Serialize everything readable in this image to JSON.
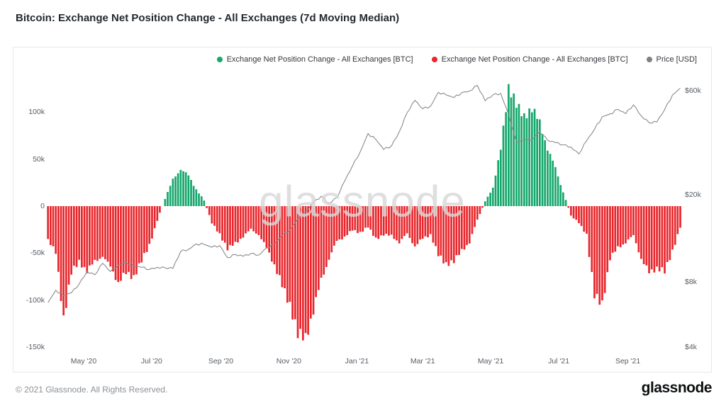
{
  "title": "Bitcoin: Exchange Net Position Change - All Exchanges (7d Moving Median)",
  "watermark": "glassnode",
  "legend": [
    {
      "label": "Exchange Net Position Change - All Exchanges [BTC]",
      "color": "#16a76c"
    },
    {
      "label": "Exchange Net Position Change - All Exchanges [BTC]",
      "color": "#e8262c"
    },
    {
      "label": "Price [USD]",
      "color": "#808080"
    }
  ],
  "footer": {
    "copyright": "© 2021 Glassnode. All Rights Reserved.",
    "logo_text": "glassnode"
  },
  "chart_data": {
    "type": "bar+line",
    "title": "Bitcoin: Exchange Net Position Change - All Exchanges (7d Moving Median)",
    "colors": {
      "positive": "#16a76c",
      "negative": "#e8262c",
      "price": "#8a8a8a"
    },
    "left_axis": {
      "ticks": [
        "100k",
        "50k",
        "0",
        "-50k",
        "-100k",
        "-150k"
      ],
      "tick_values": [
        100000,
        50000,
        0,
        -50000,
        -100000,
        -150000
      ],
      "range": [
        -160000,
        140000
      ],
      "unit": "BTC"
    },
    "right_axis": {
      "scale": "log",
      "ticks": [
        "$60k",
        "$20k",
        "$8k",
        "$4k"
      ],
      "tick_values": [
        60000,
        20000,
        8000,
        4000
      ],
      "unit": "USD"
    },
    "x_ticks": [
      {
        "date": "2020-05-01",
        "label": "May '20"
      },
      {
        "date": "2020-07-01",
        "label": "Jul '20"
      },
      {
        "date": "2020-09-01",
        "label": "Sep '20"
      },
      {
        "date": "2020-11-01",
        "label": "Nov '20"
      },
      {
        "date": "2021-01-01",
        "label": "Jan '21"
      },
      {
        "date": "2021-03-01",
        "label": "Mar '21"
      },
      {
        "date": "2021-05-01",
        "label": "May '21"
      },
      {
        "date": "2021-07-01",
        "label": "Jul '21"
      },
      {
        "date": "2021-09-01",
        "label": "Sep '21"
      }
    ],
    "x": [
      "2020-03-30",
      "2020-04-06",
      "2020-04-13",
      "2020-04-20",
      "2020-04-27",
      "2020-05-04",
      "2020-05-11",
      "2020-05-18",
      "2020-05-25",
      "2020-06-01",
      "2020-06-08",
      "2020-06-15",
      "2020-06-22",
      "2020-06-29",
      "2020-07-06",
      "2020-07-13",
      "2020-07-20",
      "2020-07-27",
      "2020-08-03",
      "2020-08-10",
      "2020-08-17",
      "2020-08-24",
      "2020-08-31",
      "2020-09-07",
      "2020-09-14",
      "2020-09-21",
      "2020-09-28",
      "2020-10-05",
      "2020-10-12",
      "2020-10-19",
      "2020-10-26",
      "2020-11-02",
      "2020-11-09",
      "2020-11-16",
      "2020-11-23",
      "2020-11-30",
      "2020-12-07",
      "2020-12-14",
      "2020-12-21",
      "2020-12-28",
      "2021-01-04",
      "2021-01-11",
      "2021-01-18",
      "2021-01-25",
      "2021-02-01",
      "2021-02-08",
      "2021-02-15",
      "2021-02-22",
      "2021-03-01",
      "2021-03-08",
      "2021-03-15",
      "2021-03-22",
      "2021-03-29",
      "2021-04-05",
      "2021-04-12",
      "2021-04-19",
      "2021-04-26",
      "2021-05-03",
      "2021-05-10",
      "2021-05-17",
      "2021-05-24",
      "2021-05-31",
      "2021-06-07",
      "2021-06-14",
      "2021-06-21",
      "2021-06-28",
      "2021-07-05",
      "2021-07-12",
      "2021-07-19",
      "2021-07-26",
      "2021-08-02",
      "2021-08-09",
      "2021-08-16",
      "2021-08-23",
      "2021-08-30",
      "2021-09-06",
      "2021-09-13",
      "2021-09-20",
      "2021-09-27",
      "2021-10-04",
      "2021-10-11",
      "2021-10-18"
    ],
    "series": [
      {
        "name": "Exchange Net Position Change - All Exchanges [BTC]",
        "type": "bar",
        "axis": "left",
        "unit": "BTC",
        "values": [
          -35000,
          -50000,
          -120000,
          -70000,
          -60000,
          -68000,
          -60000,
          -52000,
          -66000,
          -80000,
          -72000,
          -75000,
          -58000,
          -42000,
          -15000,
          8000,
          28000,
          40000,
          32000,
          18000,
          6000,
          -18000,
          -30000,
          -45000,
          -40000,
          -32000,
          -25000,
          -30000,
          -45000,
          -62000,
          -85000,
          -105000,
          -135000,
          -142000,
          -110000,
          -80000,
          -55000,
          -38000,
          -32000,
          -26000,
          -28000,
          -22000,
          -35000,
          -30000,
          -32000,
          -38000,
          -30000,
          -42000,
          -35000,
          -30000,
          -52000,
          -62000,
          -58000,
          -48000,
          -38000,
          -15000,
          5000,
          20000,
          60000,
          128000,
          108000,
          95000,
          105000,
          88000,
          62000,
          40000,
          15000,
          -10000,
          -18000,
          -30000,
          -95000,
          -105000,
          -55000,
          -45000,
          -38000,
          -32000,
          -55000,
          -72000,
          -65000,
          -70000,
          -48000,
          -22000
        ]
      },
      {
        "name": "Price [USD]",
        "type": "line",
        "axis": "right",
        "unit": "USD",
        "values": [
          6400,
          7300,
          6900,
          7100,
          7800,
          8900,
          8600,
          9700,
          8900,
          9500,
          9800,
          9450,
          9300,
          9100,
          9300,
          9250,
          9200,
          11000,
          11250,
          11900,
          11850,
          11500,
          11700,
          10300,
          10650,
          10450,
          10750,
          10600,
          11400,
          11900,
          13050,
          13800,
          15500,
          16700,
          18400,
          19700,
          18300,
          19400,
          23100,
          27100,
          31500,
          38200,
          35900,
          32300,
          33500,
          38900,
          47600,
          54200,
          49650,
          50950,
          59000,
          57500,
          55800,
          58750,
          59900,
          63500,
          54000,
          57500,
          58300,
          46750,
          34750,
          35700,
          35800,
          39000,
          35600,
          34700,
          33900,
          33100,
          30800,
          35400,
          39900,
          45600,
          47000,
          49300,
          47150,
          51750,
          46050,
          42850,
          43200,
          49250,
          57400,
          61700
        ]
      }
    ]
  }
}
